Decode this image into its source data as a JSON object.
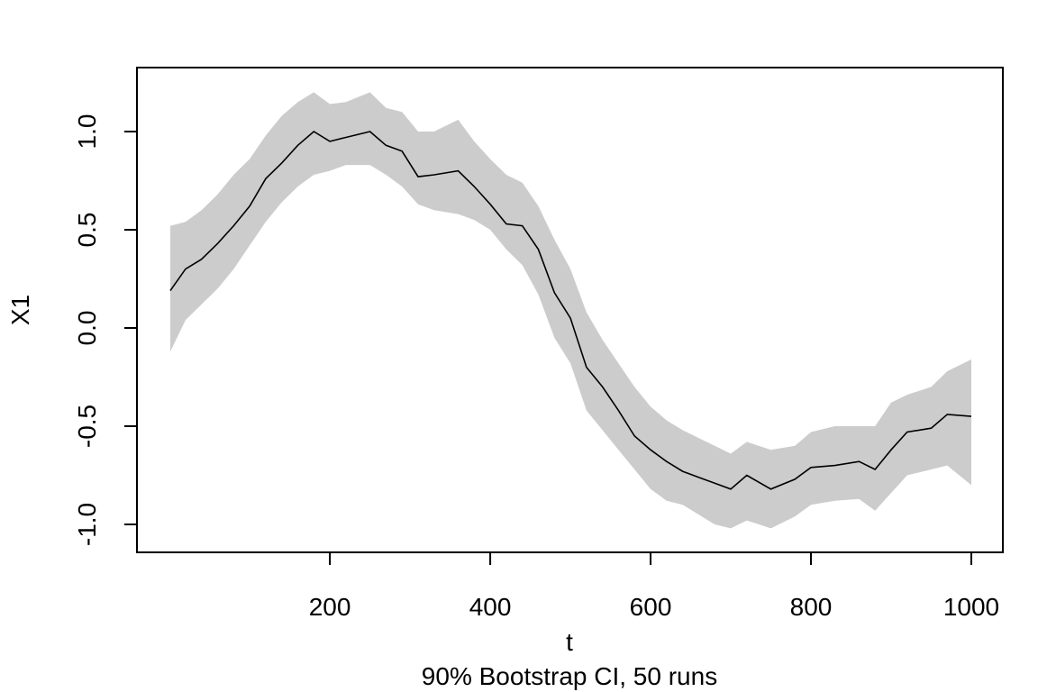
{
  "chart_data": {
    "type": "line",
    "title": "",
    "subtitle": "90% Bootstrap CI, 50 runs",
    "xlabel": "t",
    "ylabel": "X1",
    "xlim": [
      1,
      1000
    ],
    "ylim": [
      -1.12,
      1.3
    ],
    "x_ticks": [
      200,
      400,
      600,
      800,
      1000
    ],
    "x_tick_labels": [
      "200",
      "400",
      "600",
      "800",
      "1000"
    ],
    "y_ticks": [
      -1.0,
      -0.5,
      0.0,
      0.5,
      1.0
    ],
    "y_tick_labels": [
      "-1.0",
      "-0.5",
      "0.0",
      "0.5",
      "1.0"
    ],
    "grid": false,
    "legend": "none",
    "colors": {
      "line": "#000000",
      "band": "#cccccc"
    },
    "series": [
      {
        "role": "estimate",
        "x": [
          1,
          20,
          40,
          60,
          80,
          100,
          120,
          140,
          160,
          180,
          200,
          220,
          250,
          270,
          290,
          310,
          330,
          360,
          380,
          400,
          420,
          440,
          460,
          480,
          500,
          520,
          540,
          560,
          580,
          600,
          620,
          640,
          660,
          680,
          700,
          720,
          750,
          780,
          800,
          830,
          860,
          880,
          900,
          920,
          950,
          970,
          1000
        ],
        "y": [
          0.19,
          0.3,
          0.35,
          0.43,
          0.52,
          0.62,
          0.76,
          0.84,
          0.93,
          1.0,
          0.95,
          0.97,
          1.0,
          0.93,
          0.9,
          0.77,
          0.78,
          0.8,
          0.72,
          0.63,
          0.53,
          0.52,
          0.4,
          0.18,
          0.05,
          -0.2,
          -0.3,
          -0.42,
          -0.55,
          -0.62,
          -0.68,
          -0.73,
          -0.76,
          -0.79,
          -0.82,
          -0.75,
          -0.82,
          -0.77,
          -0.71,
          -0.7,
          -0.68,
          -0.72,
          -0.62,
          -0.53,
          -0.51,
          -0.44,
          -0.45
        ]
      },
      {
        "role": "ci-upper",
        "x": [
          1,
          20,
          40,
          60,
          80,
          100,
          120,
          140,
          160,
          180,
          200,
          220,
          250,
          270,
          290,
          310,
          330,
          360,
          380,
          400,
          420,
          440,
          460,
          480,
          500,
          520,
          540,
          560,
          580,
          600,
          620,
          640,
          660,
          680,
          700,
          720,
          750,
          780,
          800,
          830,
          860,
          880,
          900,
          920,
          950,
          970,
          1000
        ],
        "y": [
          0.52,
          0.54,
          0.6,
          0.68,
          0.78,
          0.86,
          0.98,
          1.08,
          1.15,
          1.2,
          1.14,
          1.15,
          1.2,
          1.12,
          1.1,
          1.0,
          1.0,
          1.06,
          0.95,
          0.86,
          0.78,
          0.74,
          0.62,
          0.45,
          0.3,
          0.08,
          -0.06,
          -0.18,
          -0.3,
          -0.4,
          -0.47,
          -0.52,
          -0.56,
          -0.6,
          -0.64,
          -0.58,
          -0.62,
          -0.6,
          -0.53,
          -0.5,
          -0.5,
          -0.5,
          -0.38,
          -0.34,
          -0.3,
          -0.22,
          -0.16
        ]
      },
      {
        "role": "ci-lower",
        "x": [
          1,
          20,
          40,
          60,
          80,
          100,
          120,
          140,
          160,
          180,
          200,
          220,
          250,
          270,
          290,
          310,
          330,
          360,
          380,
          400,
          420,
          440,
          460,
          480,
          500,
          520,
          540,
          560,
          580,
          600,
          620,
          640,
          660,
          680,
          700,
          720,
          750,
          780,
          800,
          830,
          860,
          880,
          900,
          920,
          950,
          970,
          1000
        ],
        "y": [
          -0.12,
          0.04,
          0.12,
          0.2,
          0.3,
          0.42,
          0.54,
          0.64,
          0.72,
          0.78,
          0.8,
          0.83,
          0.83,
          0.78,
          0.72,
          0.63,
          0.6,
          0.58,
          0.55,
          0.5,
          0.4,
          0.32,
          0.17,
          -0.05,
          -0.18,
          -0.42,
          -0.52,
          -0.62,
          -0.72,
          -0.82,
          -0.88,
          -0.9,
          -0.95,
          -1.0,
          -1.02,
          -0.98,
          -1.02,
          -0.96,
          -0.9,
          -0.88,
          -0.87,
          -0.93,
          -0.84,
          -0.75,
          -0.72,
          -0.7,
          -0.8
        ]
      }
    ]
  }
}
